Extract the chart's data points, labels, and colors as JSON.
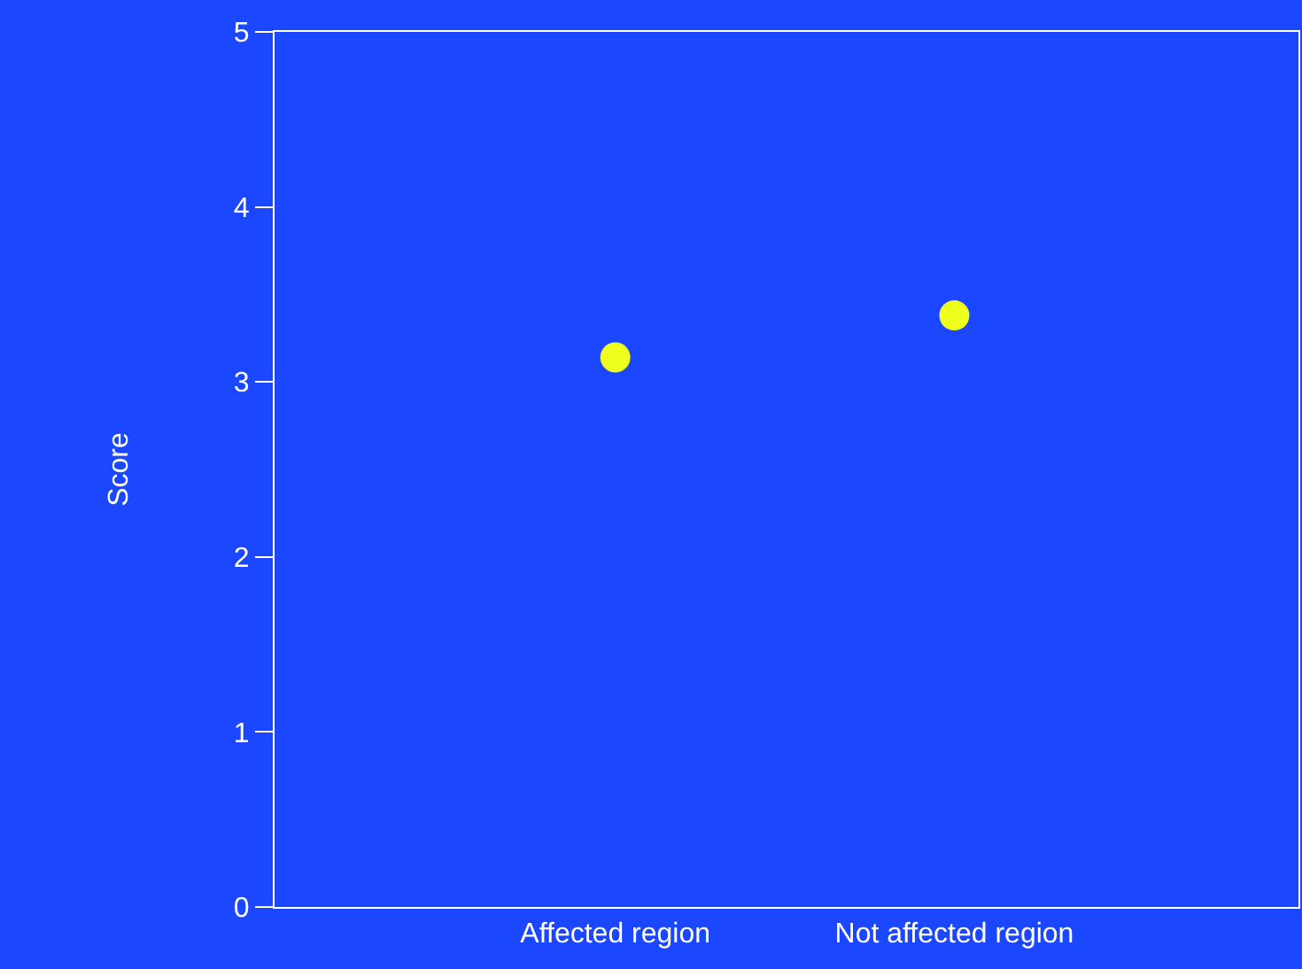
{
  "chart_data": {
    "type": "scatter",
    "ylabel": "Score",
    "categories": [
      "Affected region",
      "Not affected region"
    ],
    "series": [
      {
        "color": "#eeff1e",
        "values": [
          3.14,
          3.38
        ]
      }
    ],
    "ylim": [
      0,
      5
    ],
    "yticks": [
      0,
      1,
      2,
      3,
      4,
      5
    ],
    "grid": false,
    "legend": false,
    "marker": "circle"
  }
}
